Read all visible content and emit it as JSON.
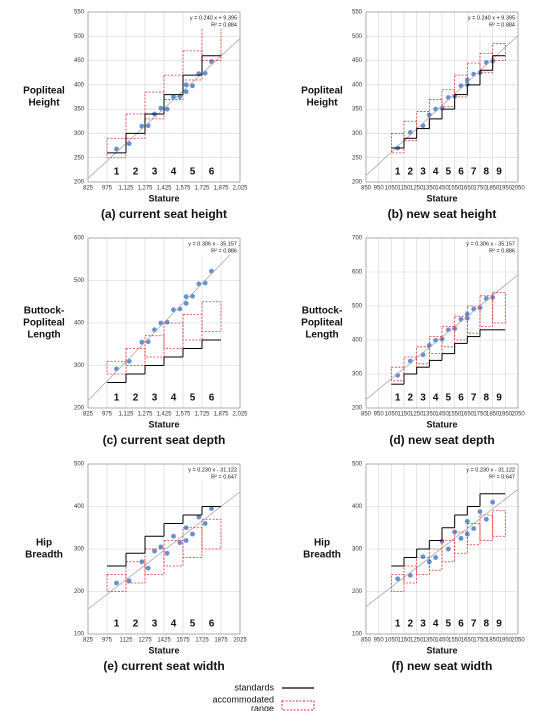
{
  "chart_data": [
    {
      "type": "scatter",
      "title": "(a) current seat height",
      "ylabel": [
        "Popliteal",
        "Height"
      ],
      "xlabel": "Stature",
      "equation": "y = 0.240 x + 9.395",
      "r2": "R² = 0.884",
      "fit": {
        "slope": 0.24,
        "intercept": 9.395
      },
      "xlim": [
        825,
        2025
      ],
      "ylim": [
        200,
        550
      ],
      "xticks": [
        825,
        975,
        {
          "value": 1125,
          "label": "1,125"
        },
        {
          "value": 1275,
          "label": "1,275"
        },
        {
          "value": 1425,
          "label": "1,425"
        },
        {
          "value": 1575,
          "label": "1,575"
        },
        {
          "value": 1725,
          "label": "1,725"
        },
        {
          "value": 1875,
          "label": "1,875"
        },
        {
          "value": 2025,
          "label": "2,025"
        }
      ],
      "yticks": [
        200,
        250,
        300,
        350,
        400,
        450,
        500,
        550
      ],
      "grid": true,
      "color": "#4a7cc9",
      "segment_edges": [
        975,
        1125,
        1275,
        1425,
        1575,
        1725,
        1875
      ],
      "segment_labels": [
        "1",
        "2",
        "3",
        "4",
        "5",
        "6"
      ],
      "standards": [
        260,
        300,
        340,
        380,
        420,
        460
      ],
      "range_low": [
        250,
        290,
        330,
        370,
        410,
        450
      ],
      "range_high": [
        290,
        340,
        385,
        420,
        470,
        520
      ],
      "x": [
        1050,
        1150,
        1250,
        1300,
        1400,
        1450,
        1500,
        1550,
        1600,
        1650,
        1700,
        1750,
        1800,
        1350,
        1600
      ],
      "y": [
        268,
        279,
        315,
        316,
        352,
        350,
        375,
        376,
        400,
        398,
        423,
        424,
        448,
        340,
        386
      ]
    },
    {
      "type": "scatter",
      "title": "(b) new seat height",
      "ylabel": [
        "Popliteal",
        "Height"
      ],
      "xlabel": "Stature",
      "equation": "y = 0.240 x + 9.395",
      "r2": "R² = 0.884",
      "fit": {
        "slope": 0.24,
        "intercept": 9.395
      },
      "xlim": [
        850,
        2050
      ],
      "ylim": [
        200,
        550
      ],
      "xticks": [
        850,
        950,
        1050,
        1150,
        1250,
        1350,
        1450,
        1550,
        1650,
        1750,
        1850,
        1950,
        2050
      ],
      "yticks": [
        200,
        250,
        300,
        350,
        400,
        450,
        500,
        550
      ],
      "grid": true,
      "color": "#4a7cc9",
      "segment_edges": [
        1050,
        1150,
        1250,
        1350,
        1450,
        1550,
        1650,
        1750,
        1850,
        1950
      ],
      "segment_labels": [
        "1",
        "2",
        "3",
        "4",
        "5",
        "6",
        "7",
        "8",
        "9"
      ],
      "standards": [
        270,
        290,
        310,
        330,
        350,
        380,
        400,
        430,
        460
      ],
      "range_low": [
        260,
        285,
        310,
        330,
        355,
        375,
        400,
        425,
        450
      ],
      "range_high": [
        300,
        325,
        345,
        370,
        390,
        420,
        445,
        465,
        485
      ],
      "x": [
        1100,
        1200,
        1300,
        1350,
        1450,
        1500,
        1550,
        1600,
        1650,
        1700,
        1750,
        1800,
        1850,
        1400,
        1650
      ],
      "y": [
        270,
        302,
        316,
        338,
        352,
        374,
        377,
        398,
        401,
        422,
        425,
        446,
        449,
        350,
        410
      ]
    },
    {
      "type": "scatter",
      "title": "(c) current seat depth",
      "ylabel": [
        "Buttock-",
        "Popliteal",
        "Length"
      ],
      "xlabel": "Stature",
      "equation": "y = 0.306 x - 35.157",
      "r2": "R² = 0.886",
      "fit": {
        "slope": 0.306,
        "intercept": -35.157
      },
      "xlim": [
        825,
        2025
      ],
      "ylim": [
        200,
        600
      ],
      "xticks": [
        825,
        975,
        {
          "value": 1125,
          "label": "1,125"
        },
        {
          "value": 1275,
          "label": "1,275"
        },
        {
          "value": 1425,
          "label": "1,425"
        },
        {
          "value": 1575,
          "label": "1,575"
        },
        {
          "value": 1725,
          "label": "1,725"
        },
        {
          "value": 1875,
          "label": "1,875"
        },
        {
          "value": 2025,
          "label": "2,025"
        }
      ],
      "yticks": [
        200,
        300,
        400,
        500,
        600
      ],
      "grid": true,
      "color": "#4a7cc9",
      "segment_edges": [
        975,
        1125,
        1275,
        1425,
        1575,
        1725,
        1875
      ],
      "segment_labels": [
        "1",
        "2",
        "3",
        "4",
        "5",
        "6"
      ],
      "standards": [
        260,
        280,
        300,
        320,
        340,
        360
      ],
      "range_low": [
        280,
        300,
        320,
        340,
        360,
        380
      ],
      "range_high": [
        310,
        340,
        370,
        400,
        420,
        450
      ],
      "x": [
        1050,
        1150,
        1250,
        1300,
        1400,
        1450,
        1500,
        1550,
        1600,
        1650,
        1700,
        1750,
        1800,
        1350,
        1600
      ],
      "y": [
        292,
        310,
        355,
        356,
        400,
        402,
        431,
        433,
        462,
        463,
        492,
        494,
        522,
        384,
        446
      ]
    },
    {
      "type": "scatter",
      "title": "(d) new seat depth",
      "ylabel": [
        "Buttock-",
        "Popliteal",
        "Length"
      ],
      "xlabel": "Stature",
      "equation": "y = 0.306 x - 35.157",
      "r2": "R² = 0.886",
      "fit": {
        "slope": 0.306,
        "intercept": -35.157
      },
      "xlim": [
        850,
        2050
      ],
      "ylim": [
        200,
        700
      ],
      "xticks": [
        850,
        950,
        1050,
        1150,
        1250,
        1350,
        1450,
        1550,
        1650,
        1750,
        1850,
        1950,
        2050
      ],
      "yticks": [
        200,
        300,
        400,
        500,
        600,
        700
      ],
      "grid": true,
      "color": "#4a7cc9",
      "segment_edges": [
        1050,
        1150,
        1250,
        1350,
        1450,
        1550,
        1650,
        1750,
        1850,
        1950
      ],
      "segment_labels": [
        "1",
        "2",
        "3",
        "4",
        "5",
        "6",
        "7",
        "8",
        "9"
      ],
      "standards": [
        270,
        300,
        320,
        340,
        360,
        390,
        410,
        430,
        430
      ],
      "range_low": [
        280,
        300,
        330,
        360,
        380,
        400,
        420,
        440,
        450
      ],
      "range_high": [
        320,
        350,
        380,
        410,
        440,
        470,
        500,
        530,
        540
      ],
      "x": [
        1100,
        1200,
        1300,
        1350,
        1450,
        1500,
        1550,
        1600,
        1650,
        1700,
        1750,
        1800,
        1850,
        1400,
        1650
      ],
      "y": [
        296,
        338,
        357,
        384,
        403,
        430,
        434,
        461,
        464,
        491,
        495,
        522,
        525,
        399,
        476
      ]
    },
    {
      "type": "scatter",
      "title": "(e) current seat width",
      "ylabel": [
        "Hip",
        "Breadth"
      ],
      "xlabel": "Stature",
      "equation": "y = 0.230 x - 31.122",
      "r2": "R² = 0.647",
      "fit": {
        "slope": 0.23,
        "intercept": -31.122
      },
      "xlim": [
        825,
        2025
      ],
      "ylim": [
        100,
        500
      ],
      "xticks": [
        825,
        975,
        1125,
        1275,
        1425,
        1575,
        1725,
        1875,
        2025
      ],
      "yticks": [
        100,
        200,
        300,
        400,
        500
      ],
      "grid": true,
      "color": "#4a7cc9",
      "segment_edges": [
        975,
        1125,
        1275,
        1425,
        1575,
        1725,
        1875
      ],
      "segment_labels": [
        "1",
        "2",
        "3",
        "4",
        "5",
        "6"
      ],
      "standards": [
        260,
        290,
        330,
        360,
        380,
        400
      ],
      "range_low": [
        200,
        220,
        240,
        260,
        280,
        300
      ],
      "range_high": [
        240,
        270,
        300,
        320,
        350,
        370
      ],
      "x": [
        1050,
        1150,
        1250,
        1300,
        1400,
        1450,
        1500,
        1550,
        1600,
        1650,
        1700,
        1750,
        1800,
        1350,
        1600
      ],
      "y": [
        220,
        225,
        270,
        255,
        305,
        290,
        330,
        315,
        350,
        335,
        375,
        360,
        395,
        295,
        320
      ]
    },
    {
      "type": "scatter",
      "title": "(f) new seat width",
      "ylabel": [
        "Hip",
        "Breadth"
      ],
      "xlabel": "Stature",
      "equation": "y = 0.230 x - 31.122",
      "r2": "R² = 0.647",
      "fit": {
        "slope": 0.23,
        "intercept": -31.122
      },
      "xlim": [
        850,
        2050
      ],
      "ylim": [
        100,
        500
      ],
      "xticks": [
        850,
        950,
        1050,
        1150,
        1250,
        1350,
        1450,
        1550,
        1650,
        1750,
        1850,
        1950,
        2050
      ],
      "yticks": [
        100,
        200,
        300,
        400,
        500
      ],
      "grid": true,
      "color": "#4a7cc9",
      "segment_edges": [
        1050,
        1150,
        1250,
        1350,
        1450,
        1550,
        1650,
        1750,
        1850,
        1950
      ],
      "segment_labels": [
        "1",
        "2",
        "3",
        "4",
        "5",
        "6",
        "7",
        "8",
        "9"
      ],
      "standards": [
        260,
        280,
        300,
        320,
        350,
        380,
        400,
        430,
        430
      ],
      "range_low": [
        200,
        220,
        240,
        250,
        270,
        290,
        310,
        320,
        330
      ],
      "range_high": [
        240,
        260,
        280,
        300,
        320,
        340,
        360,
        380,
        390
      ],
      "x": [
        1100,
        1200,
        1300,
        1350,
        1450,
        1500,
        1550,
        1600,
        1650,
        1700,
        1750,
        1800,
        1850,
        1400,
        1650
      ],
      "y": [
        230,
        238,
        282,
        270,
        318,
        300,
        340,
        325,
        365,
        348,
        388,
        370,
        410,
        280,
        335
      ]
    }
  ],
  "legend": {
    "standards": "standards",
    "range": [
      "accommodated",
      "range"
    ]
  }
}
